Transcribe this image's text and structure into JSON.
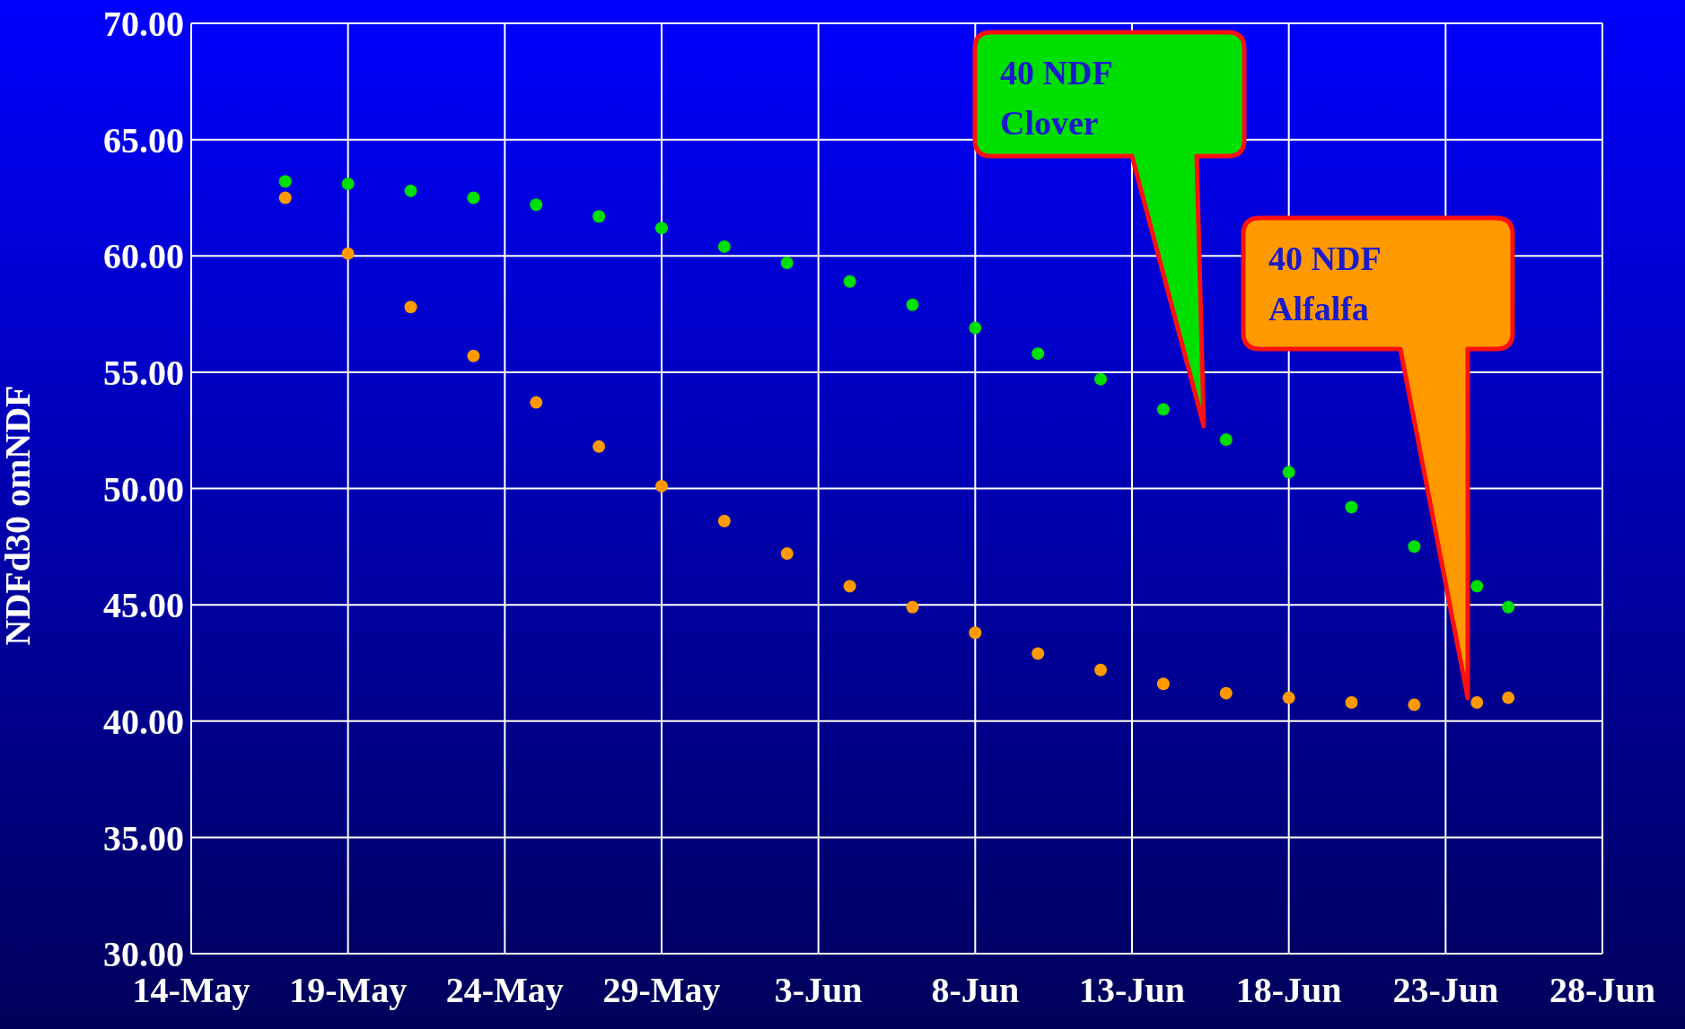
{
  "chart_data": {
    "type": "scatter",
    "ylabel": "NDFd30 omNDF",
    "x": [
      "--05-17",
      "--05-19",
      "--05-21",
      "--05-23",
      "--05-25",
      "--05-27",
      "--05-29",
      "--05-31",
      "--06-02",
      "--06-04",
      "--06-06",
      "--06-08",
      "--06-10",
      "--06-12",
      "--06-14",
      "--06-16",
      "--06-18",
      "--06-20",
      "--06-22",
      "--06-24",
      "--06-25"
    ],
    "series": [
      {
        "color": "#00e000",
        "values": [
          63.2,
          63.1,
          62.8,
          62.5,
          62.2,
          61.7,
          61.2,
          60.4,
          59.7,
          58.9,
          57.9,
          56.9,
          55.8,
          54.7,
          53.4,
          52.1,
          50.7,
          49.2,
          47.5,
          45.8,
          44.9
        ]
      },
      {
        "color": "#ff9900",
        "values": [
          62.5,
          60.1,
          57.8,
          55.7,
          53.7,
          51.8,
          50.1,
          48.6,
          47.2,
          45.8,
          44.9,
          43.8,
          42.9,
          42.2,
          41.6,
          41.2,
          41.0,
          40.8,
          40.7,
          40.8,
          41.0
        ]
      }
    ],
    "annotations": [
      "40 NDF Clover",
      "40 NDF Alfalfa"
    ],
    "xlim": [
      "--05-14",
      "--06-28"
    ],
    "xticks": [
      {
        "value": "--05-14",
        "label": "14-May"
      },
      {
        "value": "--05-19",
        "label": "19-May"
      },
      {
        "value": "--05-24",
        "label": "24-May"
      },
      {
        "value": "--05-29",
        "label": "29-May"
      },
      {
        "value": "--06-03",
        "label": "3-Jun"
      },
      {
        "value": "--06-08",
        "label": "8-Jun"
      },
      {
        "value": "--06-13",
        "label": "13-Jun"
      },
      {
        "value": "--06-18",
        "label": "18-Jun"
      },
      {
        "value": "--06-23",
        "label": "23-Jun"
      },
      {
        "value": "--06-28",
        "label": "28-Jun"
      }
    ],
    "ylim": [
      30,
      70
    ],
    "yticks": [
      {
        "value": 30,
        "label": "30.00"
      },
      {
        "value": 35,
        "label": "35.00"
      },
      {
        "value": 40,
        "label": "40.00"
      },
      {
        "value": 45,
        "label": "45.00"
      },
      {
        "value": 50,
        "label": "50.00"
      },
      {
        "value": 55,
        "label": "55.00"
      },
      {
        "value": 60,
        "label": "60.00"
      },
      {
        "value": 65,
        "label": "65.00"
      },
      {
        "value": 70,
        "label": "70.00"
      }
    ],
    "grid": true,
    "marker": "circle",
    "legend": false
  }
}
